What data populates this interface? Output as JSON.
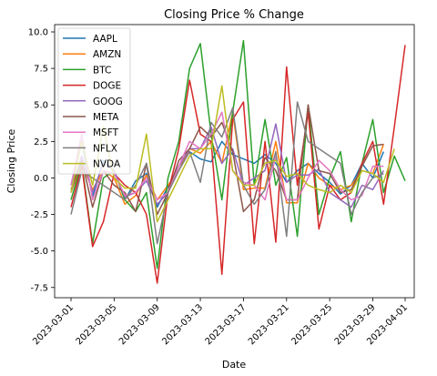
{
  "chart_data": {
    "type": "line",
    "title": "Closing Price % Change",
    "xlabel": "Date",
    "ylabel": "Closing Price",
    "x": [
      "2023-03-01",
      "2023-03-02",
      "2023-03-03",
      "2023-03-04",
      "2023-03-05",
      "2023-03-06",
      "2023-03-07",
      "2023-03-08",
      "2023-03-09",
      "2023-03-10",
      "2023-03-11",
      "2023-03-12",
      "2023-03-13",
      "2023-03-14",
      "2023-03-15",
      "2023-03-16",
      "2023-03-17",
      "2023-03-18",
      "2023-03-19",
      "2023-03-20",
      "2023-03-21",
      "2023-03-22",
      "2023-03-23",
      "2023-03-24",
      "2023-03-25",
      "2023-03-26",
      "2023-03-27",
      "2023-03-28",
      "2023-03-29",
      "2023-03-30",
      "2023-03-31",
      "2023-04-01"
    ],
    "x_ticks": [
      "2023-03-01",
      "2023-03-05",
      "2023-03-09",
      "2023-03-13",
      "2023-03-17",
      "2023-03-21",
      "2023-03-25",
      "2023-03-29",
      "2023-04-01"
    ],
    "x_tick_index": [
      0,
      4,
      8,
      12,
      16,
      20,
      24,
      28,
      31
    ],
    "y_ticks": [
      "-7.5",
      "-5.0",
      "-2.5",
      "0.0",
      "2.5",
      "5.0",
      "7.5",
      "10.0"
    ],
    "ylim": [
      -8.2,
      10.5
    ],
    "legend": "top-left",
    "grid": false,
    "series": [
      {
        "name": "AAPL",
        "color": "#1f77b4",
        "values": [
          -0.5,
          2.5,
          -1.3,
          1.2,
          0.5,
          -1.5,
          -0.2,
          0.3,
          -2.0,
          -0.6,
          0.8,
          1.8,
          1.3,
          1.1,
          2.5,
          1.6,
          1.3,
          1.0,
          1.6,
          1.0,
          -0.3,
          0.5,
          1.0,
          0.3,
          -0.3,
          -1.1,
          -0.5,
          1.0,
          0.0,
          1.8,
          null,
          null
        ]
      },
      {
        "name": "AMZN",
        "color": "#ff7f0e",
        "values": [
          -1.0,
          1.0,
          -0.8,
          0.5,
          0.0,
          -1.8,
          -1.2,
          0.2,
          -1.5,
          -0.5,
          0.5,
          2.0,
          1.7,
          2.5,
          1.0,
          4.5,
          -0.8,
          -0.7,
          -0.7,
          2.5,
          -1.7,
          -1.7,
          1.0,
          0.0,
          -0.5,
          -0.8,
          -0.5,
          0.5,
          0.3,
          2.3,
          null,
          null
        ]
      },
      {
        "name": "BTC",
        "color": "#2ca02c",
        "values": [
          -1.5,
          1.0,
          -4.5,
          0.0,
          0.5,
          -1.5,
          -2.3,
          -1.0,
          -6.2,
          0.0,
          2.5,
          7.5,
          9.2,
          3.0,
          -1.5,
          4.5,
          9.4,
          -0.5,
          4.0,
          -0.5,
          1.4,
          -4.0,
          5.0,
          -2.5,
          0.0,
          1.8,
          -3.0,
          1.0,
          4.0,
          -1.0,
          1.5,
          -0.2
        ]
      },
      {
        "name": "DOGE",
        "color": "#d62728",
        "values": [
          -2.0,
          0.8,
          -4.7,
          -3.0,
          0.3,
          -0.5,
          -1.0,
          -2.5,
          -7.2,
          -1.0,
          2.0,
          6.7,
          3.0,
          2.5,
          -6.6,
          4.0,
          5.2,
          -4.5,
          2.5,
          -4.4,
          7.6,
          -0.5,
          4.5,
          -3.5,
          -0.5,
          -1.5,
          -1.0,
          1.0,
          2.5,
          -1.8,
          3.5,
          9.1
        ]
      },
      {
        "name": "GOOG",
        "color": "#9467bd",
        "values": [
          -1.0,
          1.5,
          -1.0,
          1.0,
          0.5,
          -1.3,
          -1.0,
          -0.2,
          -1.8,
          -1.0,
          0.8,
          2.0,
          2.0,
          3.5,
          1.0,
          2.0,
          -0.5,
          0.0,
          0.5,
          3.7,
          -0.3,
          0.2,
          0.2,
          0.6,
          -1.0,
          -1.5,
          -2.0,
          -0.5,
          -0.8,
          0.5,
          null,
          null
        ]
      },
      {
        "name": "META",
        "color": "#8c564b",
        "values": [
          -0.8,
          1.2,
          -2.0,
          0.5,
          -0.5,
          -1.0,
          -2.3,
          1.0,
          -2.5,
          -1.0,
          1.2,
          2.0,
          3.5,
          2.8,
          3.8,
          1.8,
          -2.3,
          -1.5,
          1.4,
          0.5,
          -1.5,
          -1.5,
          5.0,
          0.5,
          0.3,
          -1.0,
          -0.8,
          0.8,
          2.2,
          2.3,
          null,
          null
        ]
      },
      {
        "name": "MSFT",
        "color": "#e377c2",
        "values": [
          -0.5,
          3.0,
          -1.5,
          0.5,
          0.3,
          -1.2,
          -1.0,
          0.0,
          -1.5,
          -1.0,
          0.8,
          2.5,
          2.0,
          3.0,
          4.5,
          0.5,
          -0.3,
          -0.5,
          -1.5,
          1.5,
          -1.5,
          -1.5,
          0.0,
          1.2,
          0.5,
          -0.8,
          -1.5,
          -1.2,
          0.8,
          0.8,
          null,
          null
        ]
      },
      {
        "name": "NFLX",
        "color": "#7f7f7f",
        "values": [
          -2.5,
          0.5,
          0.0,
          -0.5,
          -1.0,
          -1.5,
          -0.5,
          1.0,
          -4.5,
          -1.0,
          0.5,
          1.8,
          -0.3,
          3.8,
          2.8,
          4.8,
          -0.5,
          -1.8,
          -0.8,
          1.8,
          -4.0,
          5.2,
          2.5,
          2.0,
          1.5,
          1.0,
          -2.5,
          -1.0,
          0.0,
          0.3,
          null,
          null
        ]
      },
      {
        "name": "NVDA",
        "color": "#bcbd22",
        "values": [
          -1.0,
          2.5,
          -0.5,
          3.5,
          0.0,
          -0.7,
          -0.7,
          3.0,
          -3.0,
          -1.5,
          0.0,
          1.5,
          2.0,
          2.0,
          6.3,
          0.5,
          -0.5,
          -0.5,
          1.0,
          1.2,
          0.1,
          0.3,
          -0.5,
          -0.8,
          -1.0,
          -0.5,
          -1.0,
          0.5,
          0.3,
          -0.3,
          2.0,
          null
        ]
      }
    ]
  }
}
